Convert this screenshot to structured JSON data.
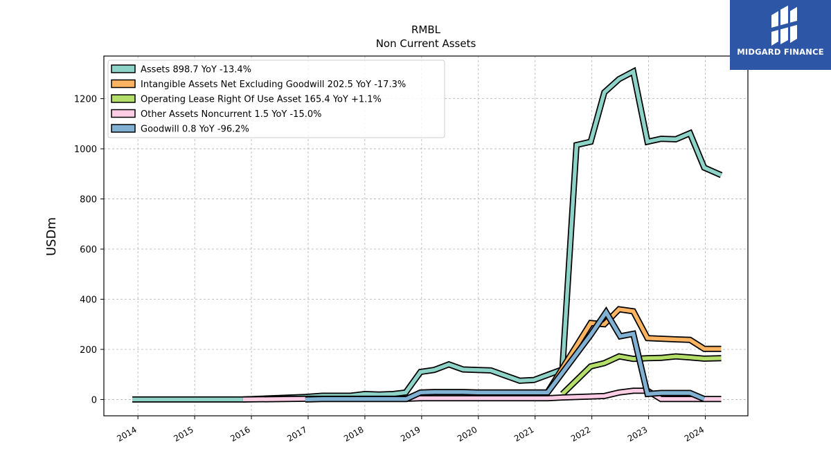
{
  "logo": {
    "text": "MIDGARD FINANCE"
  },
  "chart_data": {
    "type": "line",
    "title": "RMBL",
    "subtitle": "Non Current  Assets",
    "ylabel": "USDm",
    "xlabel": "",
    "ylim": [
      -65,
      1370
    ],
    "xlim": [
      2013.4,
      2024.75
    ],
    "yticks": [
      0,
      200,
      400,
      600,
      800,
      1000,
      1200
    ],
    "xticks": [
      2014,
      2015,
      2016,
      2017,
      2018,
      2019,
      2020,
      2021,
      2022,
      2023,
      2024
    ],
    "grid": true,
    "legend_position": "top-left",
    "series": [
      {
        "name": "Assets  898.7 YoY -13.4%",
        "color": "#8dd3c7",
        "points": [
          [
            2013.9,
            0
          ],
          [
            2015.85,
            0
          ],
          [
            2016.95,
            10
          ],
          [
            2017.25,
            15
          ],
          [
            2017.75,
            15
          ],
          [
            2018.0,
            22
          ],
          [
            2018.25,
            20
          ],
          [
            2018.5,
            22
          ],
          [
            2018.72,
            28
          ],
          [
            2018.98,
            110
          ],
          [
            2019.22,
            118
          ],
          [
            2019.48,
            140
          ],
          [
            2019.73,
            120
          ],
          [
            2019.98,
            118
          ],
          [
            2020.22,
            116
          ],
          [
            2020.48,
            95
          ],
          [
            2020.73,
            75
          ],
          [
            2020.98,
            78
          ],
          [
            2021.22,
            98
          ],
          [
            2021.48,
            120
          ],
          [
            2021.73,
            1015
          ],
          [
            2021.98,
            1028
          ],
          [
            2022.22,
            1225
          ],
          [
            2022.48,
            1278
          ],
          [
            2022.73,
            1308
          ],
          [
            2022.98,
            1028
          ],
          [
            2023.22,
            1040
          ],
          [
            2023.48,
            1038
          ],
          [
            2023.73,
            1062
          ],
          [
            2023.98,
            925
          ],
          [
            2024.28,
            895
          ]
        ]
      },
      {
        "name": "Intangible Assets Net Excluding Goodwill  202.5 YoY -17.3%",
        "color": "#fdb462",
        "points": [
          [
            2021.2,
            22
          ],
          [
            2021.98,
            305
          ],
          [
            2022.22,
            300
          ],
          [
            2022.48,
            360
          ],
          [
            2022.73,
            352
          ],
          [
            2022.98,
            245
          ],
          [
            2023.48,
            240
          ],
          [
            2023.73,
            238
          ],
          [
            2023.98,
            202
          ],
          [
            2024.28,
            202
          ]
        ]
      },
      {
        "name": "Operating Lease Right Of Use Asset  165.4 YoY +1.1%",
        "color": "#b3de69",
        "points": [
          [
            2021.48,
            22
          ],
          [
            2021.98,
            132
          ],
          [
            2022.22,
            145
          ],
          [
            2022.48,
            172
          ],
          [
            2022.73,
            162
          ],
          [
            2022.98,
            165
          ],
          [
            2023.22,
            166
          ],
          [
            2023.48,
            172
          ],
          [
            2023.73,
            168
          ],
          [
            2023.98,
            163
          ],
          [
            2024.28,
            165
          ]
        ]
      },
      {
        "name": "Other Assets Noncurrent  1.5 YoY -15.0%",
        "color": "#fccde5",
        "points": [
          [
            2015.85,
            0
          ],
          [
            2016.95,
            3
          ],
          [
            2017.75,
            3
          ],
          [
            2018.73,
            3
          ],
          [
            2018.98,
            5
          ],
          [
            2021.22,
            5
          ],
          [
            2021.48,
            8
          ],
          [
            2021.98,
            12
          ],
          [
            2022.22,
            14
          ],
          [
            2022.48,
            28
          ],
          [
            2022.73,
            35
          ],
          [
            2022.98,
            35
          ],
          [
            2023.22,
            2
          ],
          [
            2023.48,
            2
          ],
          [
            2023.73,
            2
          ],
          [
            2023.98,
            2
          ],
          [
            2024.28,
            2
          ]
        ]
      },
      {
        "name": "Goodwill  0.8 YoY -96.2%",
        "color": "#80b1d3",
        "points": [
          [
            2016.95,
            0
          ],
          [
            2017.25,
            2
          ],
          [
            2017.75,
            2
          ],
          [
            2018.73,
            2
          ],
          [
            2018.98,
            28
          ],
          [
            2019.22,
            30
          ],
          [
            2019.48,
            30
          ],
          [
            2019.73,
            30
          ],
          [
            2019.98,
            28
          ],
          [
            2021.22,
            28
          ],
          [
            2021.98,
            258
          ],
          [
            2022.25,
            348
          ],
          [
            2022.5,
            252
          ],
          [
            2022.73,
            262
          ],
          [
            2022.98,
            22
          ],
          [
            2023.22,
            26
          ],
          [
            2023.48,
            26
          ],
          [
            2023.73,
            26
          ],
          [
            2023.98,
            2
          ]
        ]
      }
    ]
  }
}
